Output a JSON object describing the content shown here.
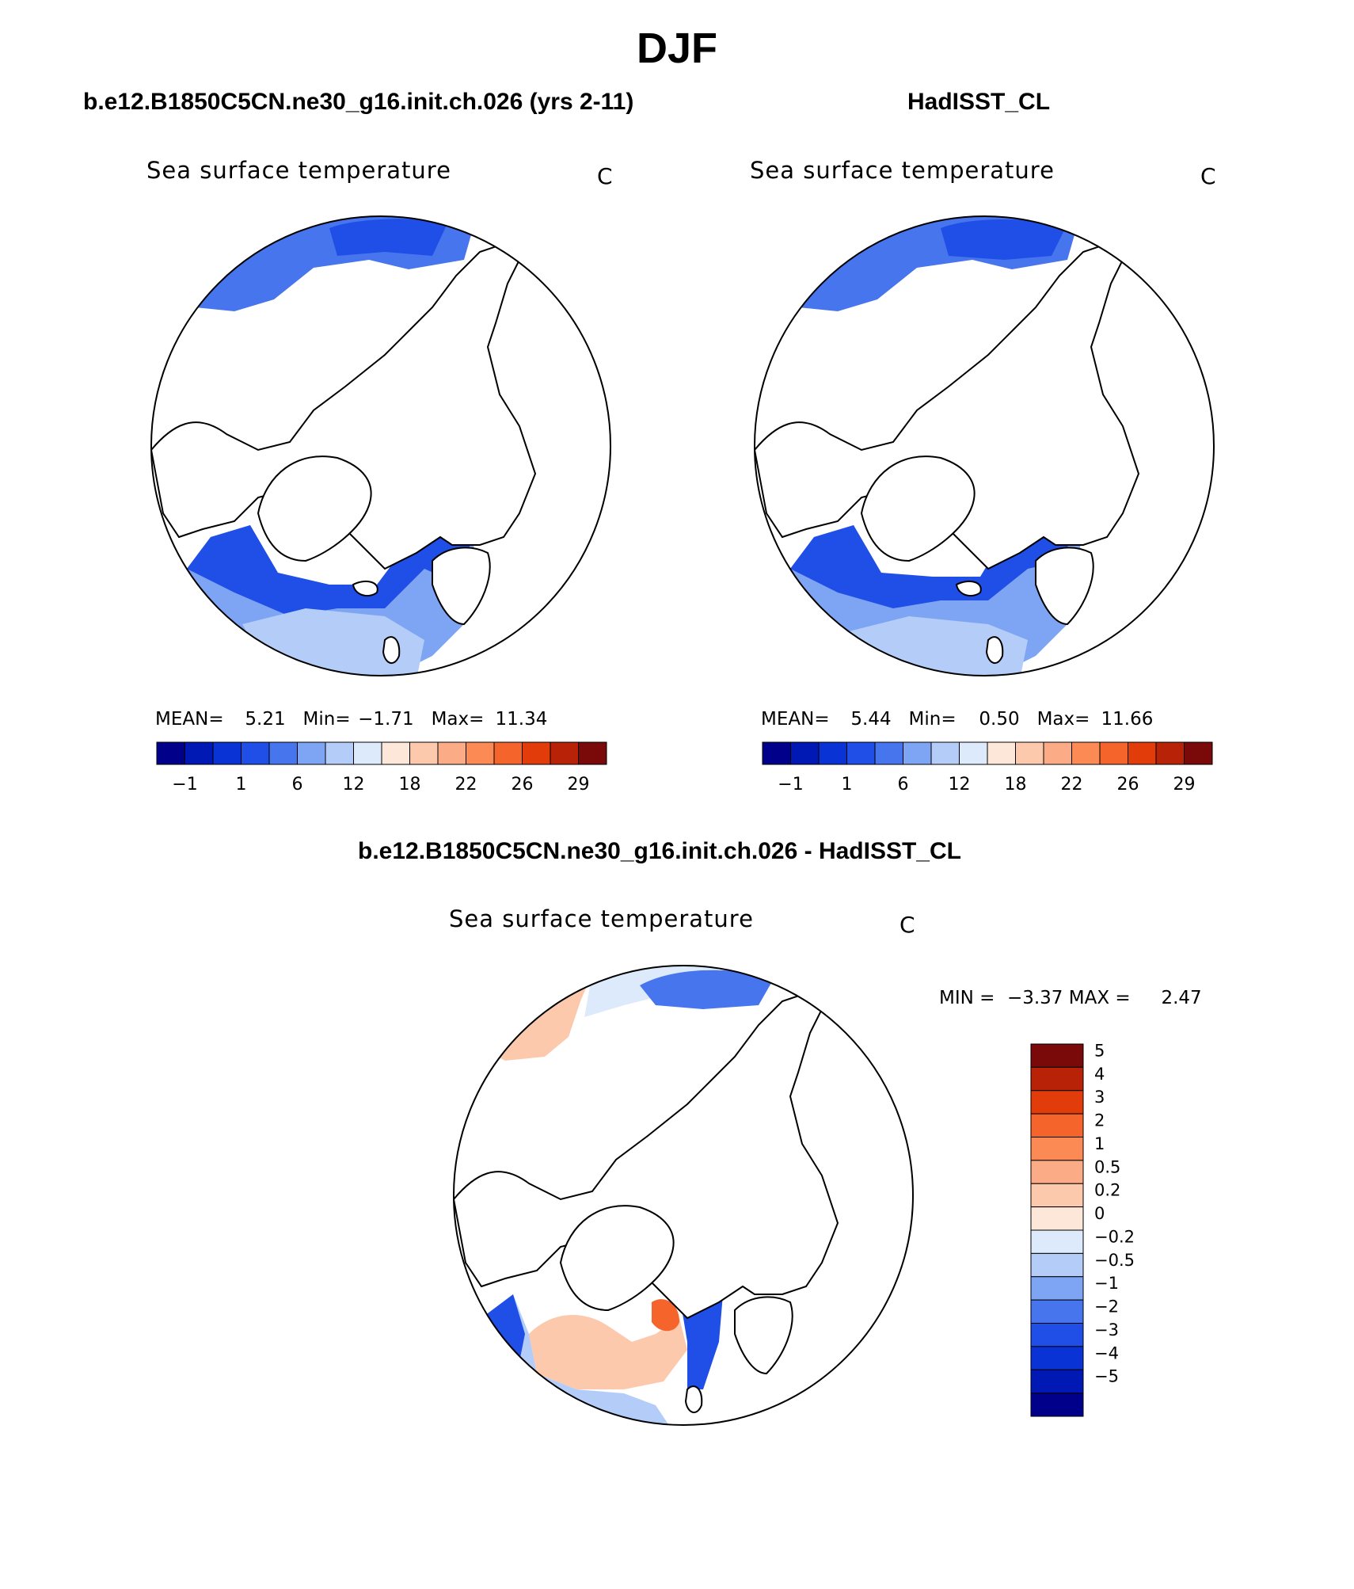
{
  "title": "DJF",
  "panels": [
    {
      "id": "model",
      "title": "b.e12.B1850C5CN.ne30_g16.init.ch.026 (yrs 2-11)",
      "variable": "Sea surface temperature",
      "units": "C",
      "stats": {
        "mean_label": "MEAN=",
        "mean": "5.21",
        "min_label": "Min=",
        "min": "−1.71",
        "max_label": "Max=",
        "max": "11.34"
      }
    },
    {
      "id": "obs",
      "title": "HadISST_CL",
      "variable": "Sea surface temperature",
      "units": "C",
      "stats": {
        "mean_label": "MEAN=",
        "mean": "5.44",
        "min_label": "Min=",
        "min": "0.50",
        "max_label": "Max=",
        "max": "11.66"
      }
    },
    {
      "id": "diff",
      "title": "b.e12.B1850C5CN.ne30_g16.init.ch.026 - HadISST_CL",
      "variable": "Sea surface temperature",
      "units": "C",
      "stats": {
        "min_label": "MIN =",
        "min": "−3.37",
        "max_label": "MAX =",
        "max": "2.47"
      }
    }
  ],
  "colorbar_abs": {
    "colors": [
      "#00008b",
      "#0019b5",
      "#0a33d6",
      "#1f4fe6",
      "#4675ee",
      "#7ea4f4",
      "#b3cdf8",
      "#dceafb",
      "#fde7d8",
      "#fcc9ac",
      "#fbab86",
      "#fb8a55",
      "#f5642b",
      "#e23c0a",
      "#b82308",
      "#7a0909"
    ],
    "tick_labels": [
      "−1",
      "1",
      "6",
      "12",
      "18",
      "22",
      "26",
      "29"
    ]
  },
  "colorbar_diff": {
    "colors": [
      "#7a0909",
      "#b82308",
      "#e23c0a",
      "#f5642b",
      "#fb8a55",
      "#fbab86",
      "#fcc9ac",
      "#fde7d8",
      "#dceafb",
      "#b3cdf8",
      "#7ea4f4",
      "#4675ee",
      "#1f4fe6",
      "#0a33d6",
      "#0019b5",
      "#00008b"
    ],
    "tick_labels": [
      "5",
      "4",
      "3",
      "2",
      "1",
      "0.5",
      "0.2",
      "0",
      "−0.2",
      "−0.5",
      "−1",
      "−2",
      "−3",
      "−4",
      "−5"
    ]
  },
  "map_colors": {
    "land": "#ffffff",
    "coast": "#000000",
    "sst_deep": "#1f4fe6",
    "sst_mid": "#4675ee",
    "sst_light": "#7ea4f4",
    "sst_pale": "#b3cdf8",
    "diff_warm": "#fbab86",
    "diff_pale_warm": "#fcc9ac",
    "diff_hot": "#f5642b",
    "diff_cool": "#b3cdf8",
    "diff_blue": "#4675ee",
    "diff_deep": "#1f4fe6"
  }
}
